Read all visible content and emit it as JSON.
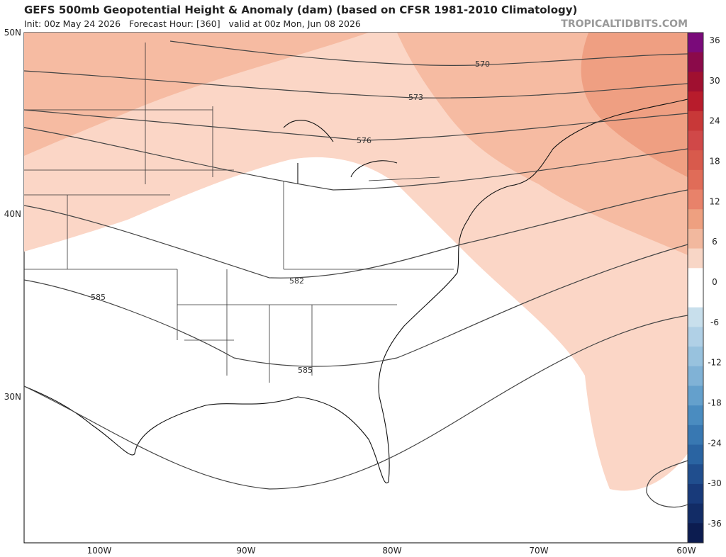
{
  "header": {
    "title": "GEFS 500mb Geopotential Height & Anomaly (dam) (based on CFSR 1981-2010 Climatology)",
    "subtitle": "Init: 00z May 24 2026   Forecast Hour: [360]   valid at 00z Mon, Jun 08 2026",
    "brand": "TROPICALTIDBITS.COM"
  },
  "map": {
    "lat_labels": [
      "50N",
      "40N",
      "30N"
    ],
    "lon_labels": [
      "100W",
      "90W",
      "80W",
      "70W",
      "60W"
    ],
    "contour_labels": [
      "570",
      "573",
      "576",
      "582",
      "585",
      "585"
    ]
  },
  "colorbar": {
    "labels": [
      36,
      30,
      24,
      18,
      12,
      6,
      0,
      -6,
      -12,
      -18,
      -24,
      -30,
      -36
    ],
    "colors": [
      "#7a0a7a",
      "#8b0a4a",
      "#a01030",
      "#b81c2c",
      "#c83838",
      "#d04848",
      "#d85a4c",
      "#e06c58",
      "#e8826a",
      "#eea080",
      "#f2b89e",
      "#f8d6c6",
      "#ffffff",
      "#ffffff",
      "#c8dfec",
      "#b0d0e6",
      "#98c2de",
      "#80b2d6",
      "#64a0cc",
      "#4a8cc0",
      "#3878b2",
      "#2a64a2",
      "#204e8e",
      "#183a7a",
      "#122c66",
      "#0c1c50"
    ]
  }
}
